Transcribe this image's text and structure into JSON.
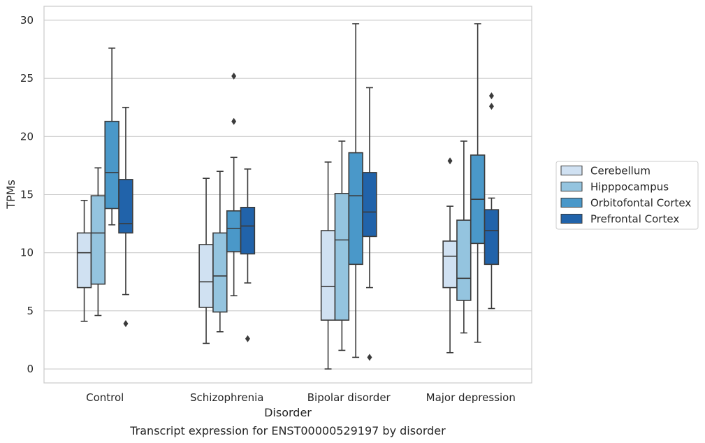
{
  "chart_data": {
    "type": "box",
    "xlabel": "Disorder",
    "ylabel": "TPMs",
    "caption": "Transcript expression for ENST00000529197 by disorder",
    "ylim": [
      -1.2,
      31.2
    ],
    "yticks": [
      0,
      5,
      10,
      15,
      20,
      25,
      30
    ],
    "grid": true,
    "legend_position": "right",
    "categories": [
      "Control",
      "Schizophrenia",
      "Bipolar disorder",
      "Major depression"
    ],
    "series": [
      {
        "name": "Cerebellum",
        "color": "#d0e1f2",
        "boxes": [
          {
            "low": 4.1,
            "q1": 7.0,
            "median": 10.0,
            "q3": 11.7,
            "high": 14.5,
            "outliers": []
          },
          {
            "low": 2.2,
            "q1": 5.3,
            "median": 7.5,
            "q3": 10.7,
            "high": 16.4,
            "outliers": []
          },
          {
            "low": 0.0,
            "q1": 4.2,
            "median": 7.1,
            "q3": 11.9,
            "high": 17.8,
            "outliers": []
          },
          {
            "low": 1.4,
            "q1": 7.0,
            "median": 9.7,
            "q3": 11.0,
            "high": 14.0,
            "outliers": [
              17.9
            ]
          }
        ]
      },
      {
        "name": "Hipppocampus",
        "color": "#94c4df",
        "boxes": [
          {
            "low": 4.6,
            "q1": 7.3,
            "median": 11.7,
            "q3": 14.9,
            "high": 17.3,
            "outliers": []
          },
          {
            "low": 3.2,
            "q1": 4.9,
            "median": 8.0,
            "q3": 11.7,
            "high": 17.0,
            "outliers": []
          },
          {
            "low": 1.6,
            "q1": 4.2,
            "median": 11.1,
            "q3": 15.1,
            "high": 19.6,
            "outliers": []
          },
          {
            "low": 3.1,
            "q1": 5.9,
            "median": 7.8,
            "q3": 12.8,
            "high": 19.6,
            "outliers": []
          }
        ]
      },
      {
        "name": "Orbitofontal Cortex",
        "color": "#4a98c9",
        "boxes": [
          {
            "low": 12.4,
            "q1": 13.8,
            "median": 16.9,
            "q3": 21.3,
            "high": 27.6,
            "outliers": []
          },
          {
            "low": 6.3,
            "q1": 10.1,
            "median": 12.1,
            "q3": 13.6,
            "high": 18.2,
            "outliers": [
              21.3,
              25.2
            ]
          },
          {
            "low": 1.0,
            "q1": 9.0,
            "median": 14.9,
            "q3": 18.6,
            "high": 29.7,
            "outliers": []
          },
          {
            "low": 2.3,
            "q1": 10.8,
            "median": 14.6,
            "q3": 18.4,
            "high": 29.7,
            "outliers": []
          }
        ]
      },
      {
        "name": "Prefrontal Cortex",
        "color": "#2163aa",
        "boxes": [
          {
            "low": 6.4,
            "q1": 11.7,
            "median": 12.5,
            "q3": 16.3,
            "high": 22.5,
            "outliers": [
              3.9
            ]
          },
          {
            "low": 7.4,
            "q1": 9.9,
            "median": 12.3,
            "q3": 13.9,
            "high": 17.2,
            "outliers": [
              2.6
            ]
          },
          {
            "low": 7.0,
            "q1": 11.4,
            "median": 13.5,
            "q3": 16.9,
            "high": 24.2,
            "outliers": [
              1.0
            ]
          },
          {
            "low": 5.2,
            "q1": 9.0,
            "median": 11.9,
            "q3": 13.7,
            "high": 14.7,
            "outliers": [
              22.6,
              23.5
            ]
          }
        ]
      }
    ]
  }
}
